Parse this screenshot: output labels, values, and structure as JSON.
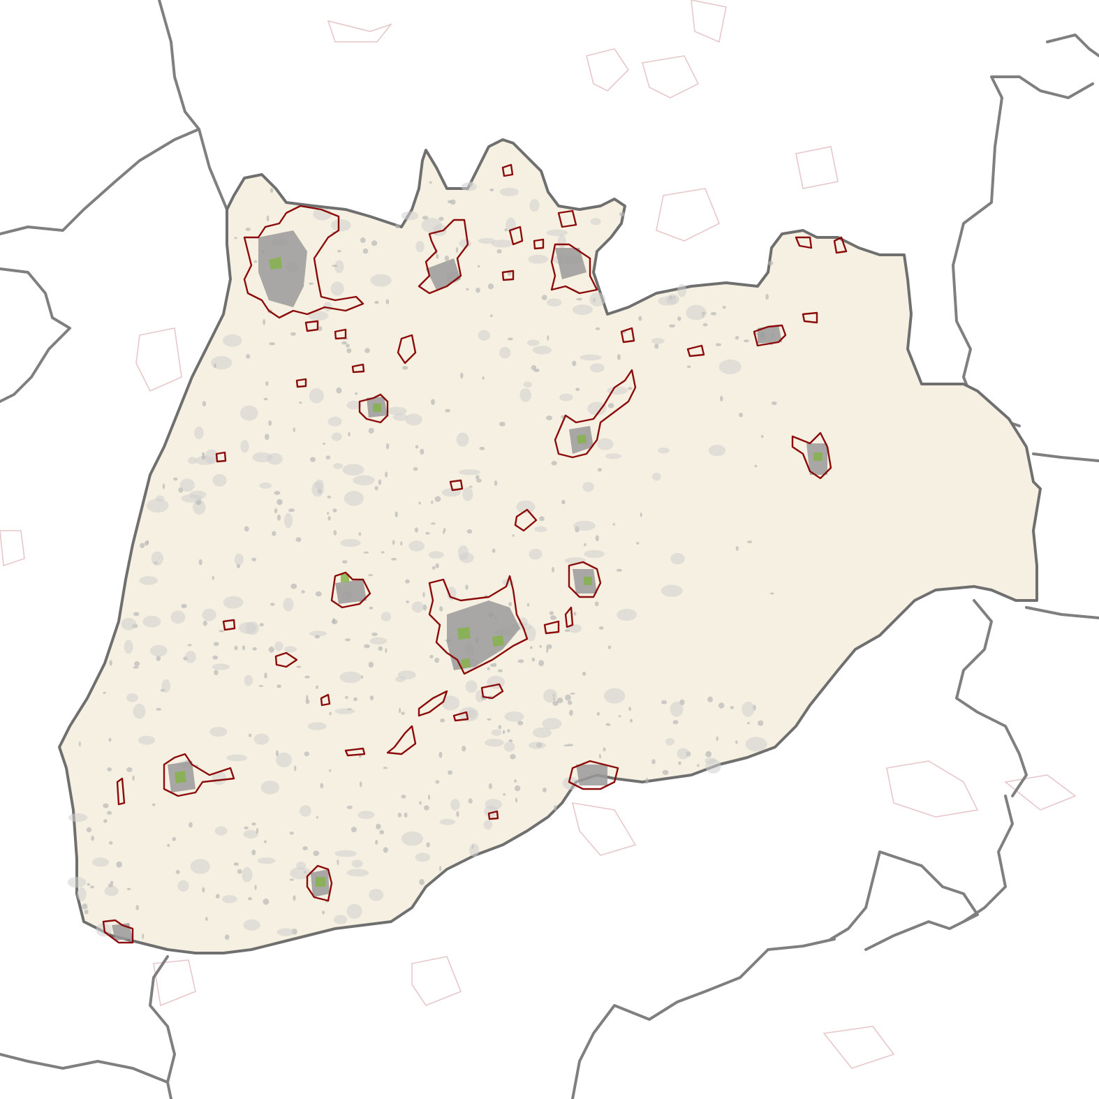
{
  "map": {
    "colors": {
      "background": "#ffffff",
      "region_fill": "#f5f0e1",
      "region_border": "#6f6f6f",
      "neighbor_border": "#7f7f7f",
      "urban_outline": "#8b0a0a",
      "urban_core": "#9a9a9a",
      "green_space": "#86b34a",
      "outside_settlement_outline": "#e7c7ca",
      "built_up_patch": "#cfcfcf"
    },
    "layers": [
      "neighbor-boundaries",
      "study-region",
      "built-up-patches",
      "urban-area-outlines",
      "outside-settlement-outlines"
    ],
    "legend_visible": false,
    "labels_visible": false
  }
}
